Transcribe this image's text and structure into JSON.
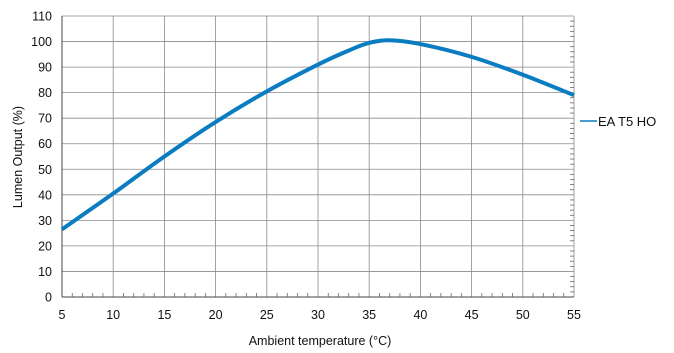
{
  "chart_data": {
    "type": "line",
    "title": "",
    "xlabel": "Ambient temperature (°C)",
    "ylabel": "Lumen Output (%)",
    "xlim": [
      5,
      55
    ],
    "ylim": [
      0,
      110
    ],
    "x_ticks": [
      5,
      10,
      15,
      20,
      25,
      30,
      35,
      40,
      45,
      50,
      55
    ],
    "y_ticks": [
      0,
      10,
      20,
      30,
      40,
      50,
      60,
      70,
      80,
      90,
      100,
      110
    ],
    "x_tick_labels": [
      "5",
      "10",
      "15",
      "20",
      "25",
      "30",
      "35",
      "40",
      "45",
      "50",
      "55"
    ],
    "y_tick_labels": [
      "0",
      "10",
      "20",
      "30",
      "40",
      "50",
      "60",
      "70",
      "80",
      "90",
      "100",
      "110"
    ],
    "grid": true,
    "legend_position": "right",
    "series": [
      {
        "name": "EA T5 HO",
        "color": "#0a7cc1",
        "x": [
          5,
          10,
          15,
          20,
          25,
          30,
          33,
          35,
          37,
          40,
          45,
          50,
          55
        ],
        "y": [
          26.5,
          40.5,
          55,
          68.5,
          80.5,
          91,
          96.5,
          99.5,
          100.5,
          99,
          94,
          87,
          79
        ]
      }
    ]
  }
}
